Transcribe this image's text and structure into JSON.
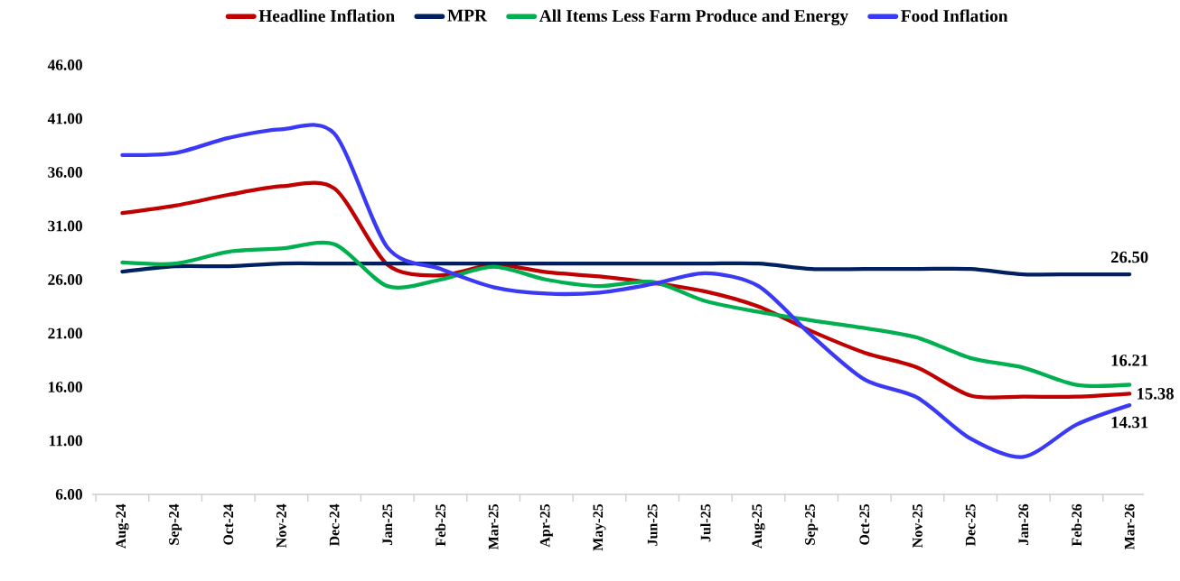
{
  "chart_data": {
    "type": "line",
    "categories": [
      "Aug-24",
      "Sep-24",
      "Oct-24",
      "Nov-24",
      "Dec-24",
      "Jan-25",
      "Feb-25",
      "Mar-25",
      "Apr-25",
      "May-25",
      "Jun-25",
      "Jul-25",
      "Aug-25",
      "Sep-25",
      "Oct-25",
      "Nov-25",
      "Dec-25",
      "Jan-26",
      "Feb-26",
      "Mar-26"
    ],
    "series": [
      {
        "name": "Headline Inflation",
        "color": "#c00000",
        "values": [
          32.2,
          32.9,
          33.9,
          34.7,
          34.5,
          27.4,
          26.4,
          27.4,
          26.7,
          26.3,
          25.7,
          24.9,
          23.5,
          21.2,
          19.2,
          17.8,
          15.2,
          15.1,
          15.1,
          15.38
        ],
        "value_labels": [
          null,
          null,
          null,
          null,
          null,
          null,
          null,
          null,
          null,
          null,
          null,
          null,
          null,
          null,
          null,
          null,
          null,
          null,
          null,
          "15.38"
        ]
      },
      {
        "name": "MPR",
        "color": "#002060",
        "values": [
          26.75,
          27.25,
          27.25,
          27.5,
          27.5,
          27.5,
          27.5,
          27.5,
          27.5,
          27.5,
          27.5,
          27.5,
          27.5,
          27.0,
          27.0,
          27.0,
          27.0,
          26.5,
          26.5,
          26.5
        ],
        "value_labels": [
          null,
          null,
          null,
          null,
          null,
          null,
          null,
          null,
          null,
          null,
          null,
          null,
          null,
          null,
          null,
          null,
          null,
          null,
          null,
          "26.50"
        ]
      },
      {
        "name": "All Items Less Farm Produce and Energy",
        "color": "#00b050",
        "values": [
          27.6,
          27.5,
          28.6,
          28.9,
          29.3,
          25.4,
          26.0,
          27.2,
          26.0,
          25.4,
          25.8,
          24.0,
          23.0,
          22.2,
          21.5,
          20.6,
          18.7,
          17.8,
          16.2,
          16.21
        ],
        "value_labels": [
          null,
          null,
          null,
          null,
          null,
          null,
          null,
          null,
          null,
          null,
          null,
          null,
          null,
          null,
          null,
          null,
          null,
          null,
          null,
          "16.21"
        ]
      },
      {
        "name": "Food Inflation",
        "color": "#3a3af5",
        "values": [
          37.6,
          37.8,
          39.2,
          40.0,
          39.6,
          29.0,
          27.0,
          25.3,
          24.7,
          24.8,
          25.6,
          26.6,
          25.4,
          20.8,
          16.7,
          15.0,
          11.2,
          9.5,
          12.5,
          14.31
        ],
        "value_labels": [
          null,
          null,
          null,
          null,
          null,
          null,
          null,
          null,
          null,
          null,
          null,
          null,
          null,
          null,
          null,
          null,
          null,
          null,
          null,
          "14.31"
        ]
      }
    ],
    "ylim": [
      6,
      46
    ],
    "yticks": [
      {
        "value": 6,
        "label": "6.00"
      },
      {
        "value": 11,
        "label": "11.00"
      },
      {
        "value": 16,
        "label": "16.00"
      },
      {
        "value": 21,
        "label": "21.00"
      },
      {
        "value": 26,
        "label": "26.00"
      },
      {
        "value": 31,
        "label": "31.00"
      },
      {
        "value": 36,
        "label": "36.00"
      },
      {
        "value": 41,
        "label": "41.00"
      },
      {
        "value": 46,
        "label": "46.00"
      }
    ],
    "legend": "top",
    "grid": false,
    "marker": "none",
    "line_style": "solid"
  }
}
